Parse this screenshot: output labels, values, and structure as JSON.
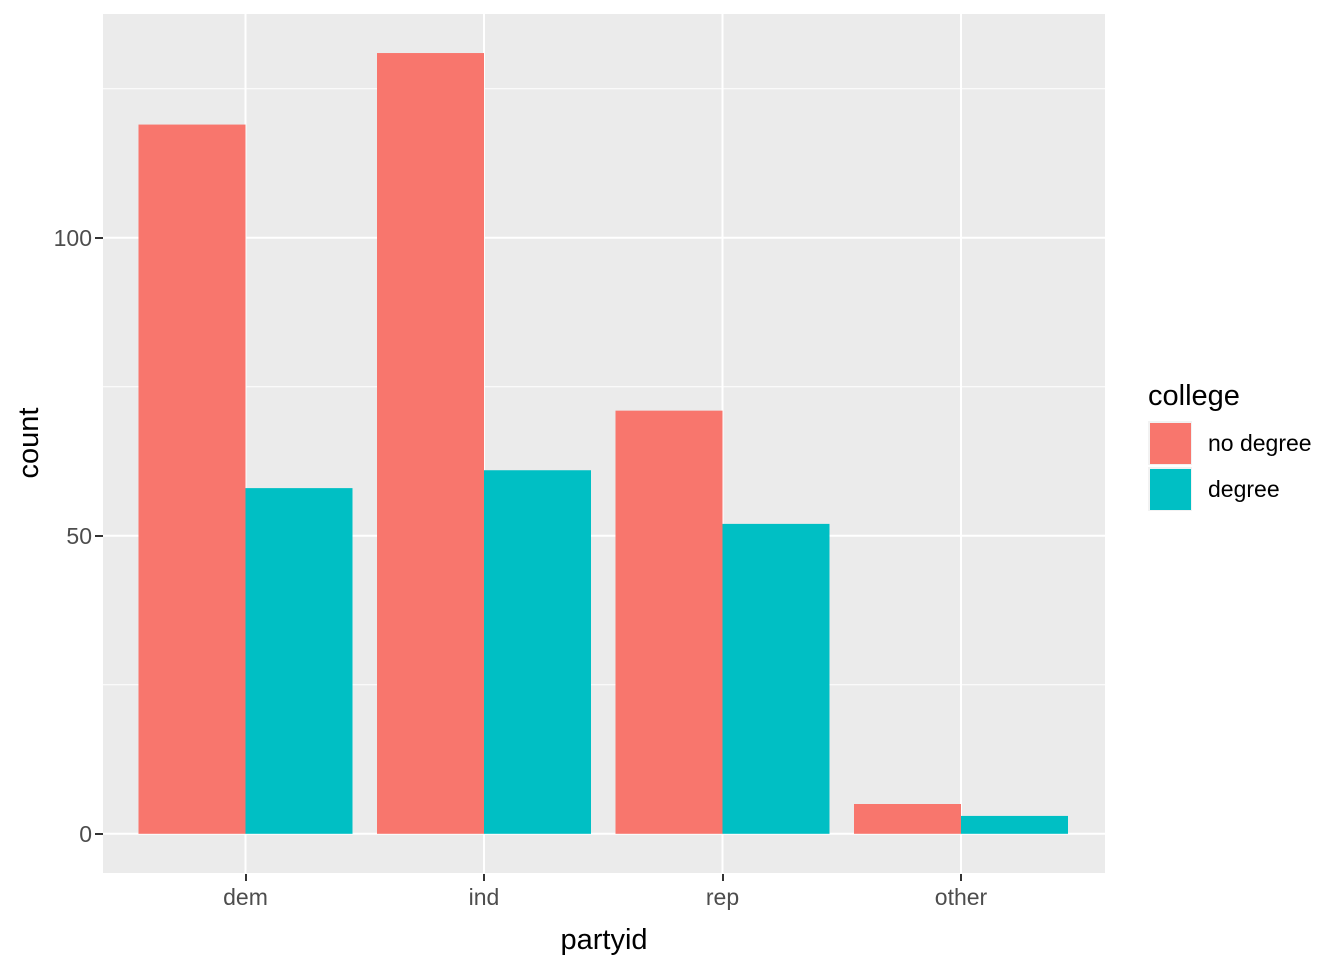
{
  "figure": {
    "background_color": "#FFFFFF",
    "panel_background_color": "#EBEBEB",
    "gridline_color": "#FFFFFF",
    "tick_mark_color": "#333333",
    "axis_text_color": "#4D4D4D",
    "axis_title_color": "#000000"
  },
  "chart_data": {
    "type": "bar",
    "orientation": "vertical",
    "grouping": "dodge",
    "title": "",
    "xlabel": "partyid",
    "ylabel": "count",
    "categories": [
      "dem",
      "ind",
      "rep",
      "other"
    ],
    "series": [
      {
        "name": "no degree",
        "color": "#F8766D",
        "values": [
          119,
          131,
          71,
          5
        ]
      },
      {
        "name": "degree",
        "color": "#00BFC4",
        "values": [
          58,
          61,
          52,
          3
        ]
      }
    ],
    "y_ticks": [
      0,
      50,
      100
    ],
    "y_minor_gridlines": [
      25,
      75,
      125
    ],
    "ylim": [
      -6.6,
      137.6
    ],
    "grid": true,
    "legend": {
      "title": "college",
      "position": "right"
    }
  }
}
